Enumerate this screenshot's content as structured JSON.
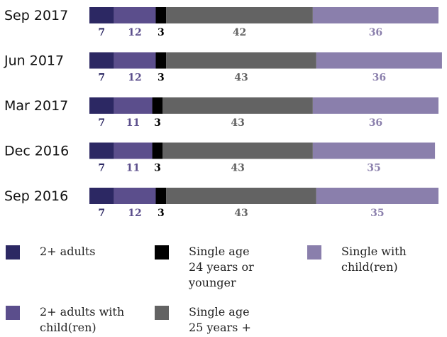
{
  "chart_data": {
    "type": "bar",
    "orientation": "horizontal-stacked",
    "categories": [
      "Sep 2017",
      "Jun 2017",
      "Mar 2017",
      "Dec 2016",
      "Sep 2016"
    ],
    "series": [
      {
        "name": "2+ adults",
        "color": "#2c2863",
        "label_color": "#2c2863",
        "values": [
          7,
          7,
          7,
          7,
          7
        ]
      },
      {
        "name": "2+ adults with\nchild(ren)",
        "color": "#5b4e8c",
        "label_color": "#5b4e8c",
        "values": [
          12,
          12,
          11,
          11,
          12
        ]
      },
      {
        "name": "Single age\n24 years or\nyounger",
        "color": "#000000",
        "label_color": "#000000",
        "values": [
          3,
          3,
          3,
          3,
          3
        ]
      },
      {
        "name": "Single age\n25 years +",
        "color": "#636363",
        "label_color": "#636363",
        "values": [
          42,
          43,
          43,
          43,
          43
        ]
      },
      {
        "name": "Single with\nchild(ren)",
        "color": "#8a7fac",
        "label_color": "#8a7fac",
        "values": [
          36,
          36,
          36,
          35,
          35
        ]
      }
    ],
    "xlim": [
      0,
      100
    ],
    "legend_placement": "bottom",
    "grid": false
  }
}
